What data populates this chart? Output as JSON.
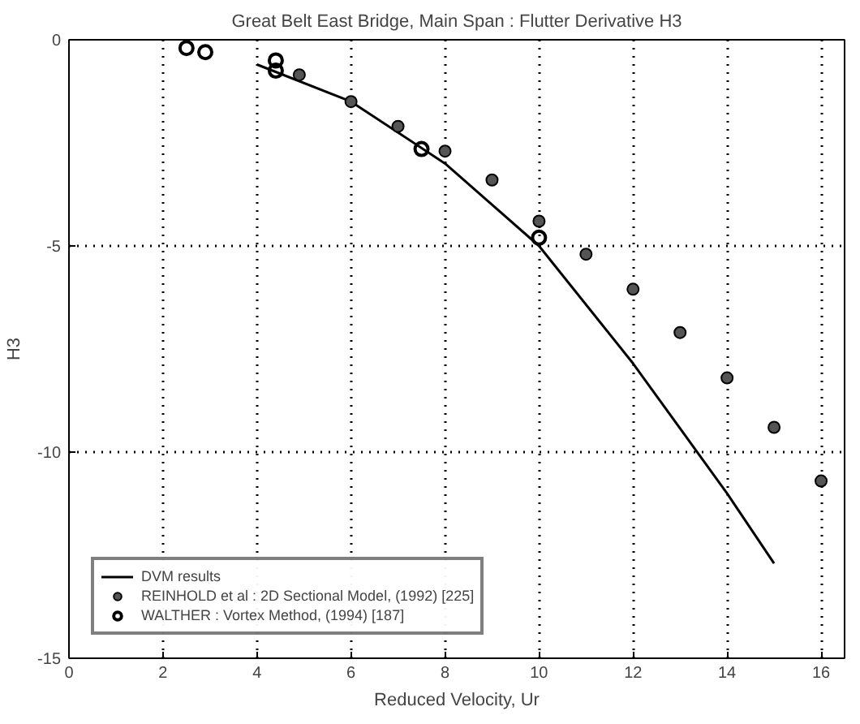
{
  "chart_data": {
    "type": "scatter",
    "title": "Great Belt East Bridge, Main Span : Flutter Derivative H3",
    "xlabel": "Reduced Velocity, Ur",
    "ylabel": "H3",
    "xlim": [
      0,
      16.5
    ],
    "ylim": [
      -15,
      0
    ],
    "xticks": [
      0,
      2,
      4,
      6,
      8,
      10,
      12,
      14,
      16
    ],
    "yticks": [
      0,
      -5,
      -10,
      -15
    ],
    "grid": true,
    "legend": "bottom left",
    "series": [
      {
        "name": "DVM results",
        "type": "line",
        "color": "#000000",
        "line_style": "solid",
        "marker": "none",
        "x": [
          4,
          6,
          8,
          10,
          12,
          14,
          15
        ],
        "values": [
          -0.6,
          -1.5,
          -3.0,
          -5.0,
          -7.85,
          -11.0,
          -12.7
        ]
      },
      {
        "name": "REINHOLD et al : 2D Sectional Model, (1992) [225]",
        "color": "#555555",
        "marker": "circle",
        "x": [
          4.9,
          6,
          7,
          8,
          9,
          10,
          11,
          12,
          13,
          14,
          15,
          16
        ],
        "values": [
          -0.85,
          -1.5,
          -2.1,
          -2.7,
          -3.4,
          -4.4,
          -5.2,
          -6.05,
          -7.1,
          -8.2,
          -9.4,
          -10.7
        ]
      },
      {
        "name": "WALTHER : Vortex Method, (1994) [187]",
        "color": "#000000",
        "marker": "circle_open",
        "x": [
          2.5,
          2.9,
          4.4,
          4.4,
          7.5,
          10
        ],
        "values": [
          -0.2,
          -0.3,
          -0.5,
          -0.75,
          -2.65,
          -4.8
        ]
      }
    ]
  }
}
